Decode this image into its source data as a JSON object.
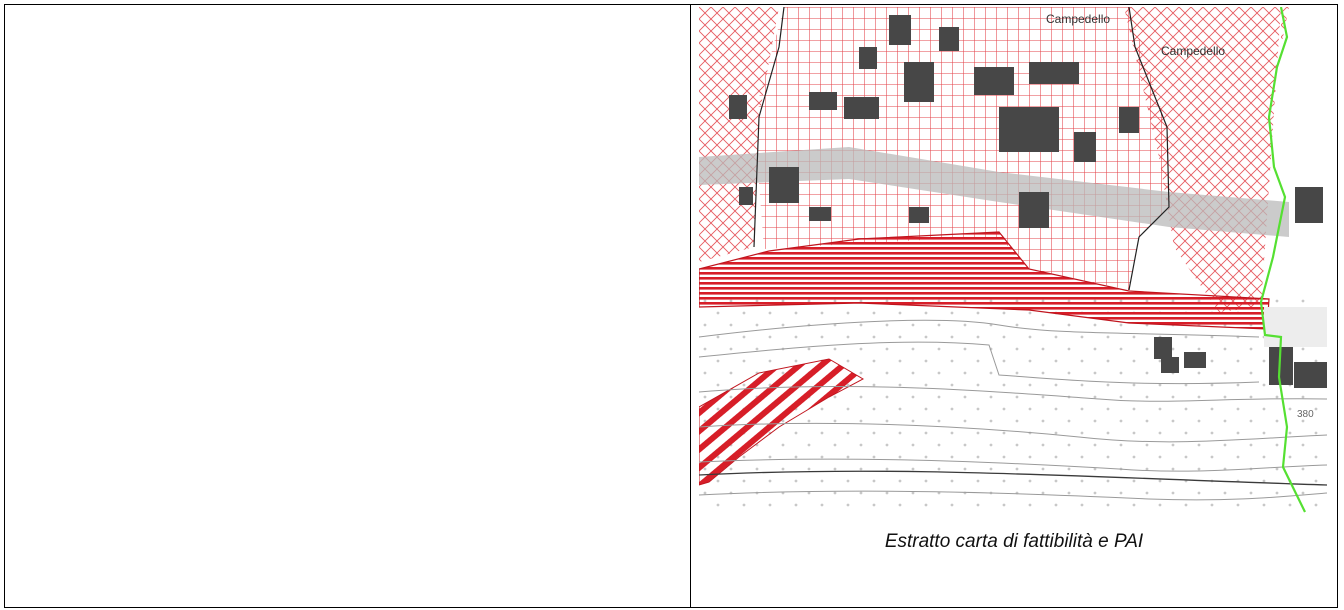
{
  "map": {
    "place_labels": [
      "Campedello",
      "Campedello"
    ],
    "contour_label": "380",
    "colors": {
      "feasibility_hatch": "#e2222b",
      "pai_boundary": "#55e032",
      "buildings": "#474747",
      "contours": "#9a9a9a"
    }
  },
  "caption": "Estratto carta di fattibilità e PAI"
}
